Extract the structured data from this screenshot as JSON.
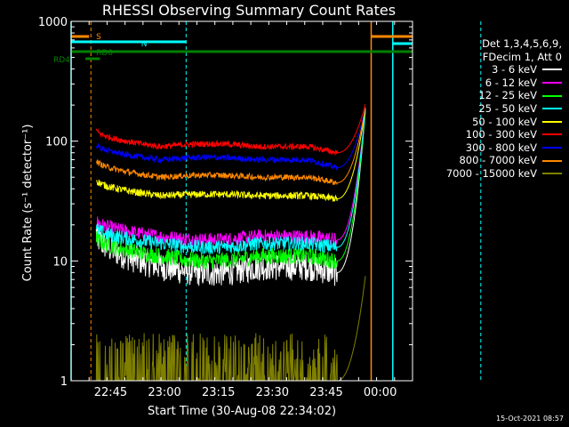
{
  "title": "RHESSI Observing Summary Count Rates",
  "stamp": "15-Oct-2021 08:57",
  "colors": {
    "background": "#000000",
    "axes": "#ffffff",
    "attenuator_state": "#ff8800",
    "night_marker": "#00ffff",
    "saa_marker": "#008000"
  },
  "chart_data": {
    "type": "line",
    "title": "RHESSI Observing Summary Count Rates",
    "xlabel": "Start Time (30-Aug-08 22:34:02)",
    "ylabel": "Count Rate (s⁻¹ detector⁻¹)",
    "yscale": "log",
    "ylim": [
      1,
      1000
    ],
    "xlim": [
      "22:34",
      "00:09"
    ],
    "x_ticks": [
      "22:45",
      "23:00",
      "23:15",
      "23:30",
      "23:45",
      "00:00"
    ],
    "y_ticks": [
      "1",
      "10",
      "100",
      "1000"
    ],
    "legend": {
      "header": [
        "Det 1,3,4,5,6,9,",
        "FDecim 1, Att 0"
      ],
      "placement": "right"
    },
    "series": [
      {
        "name": "3 - 6 keV",
        "color": "#ffffff",
        "start": 17,
        "mid": 9,
        "late": 8,
        "pre_flare": 8,
        "peak": 200,
        "noise": 0.12
      },
      {
        "name": "6 - 12 keV",
        "color": "#ff00ff",
        "start": 22,
        "mid": 16,
        "late": 15,
        "pre_flare": 15,
        "peak": 200,
        "noise": 0.06
      },
      {
        "name": "12 - 25 keV",
        "color": "#00ff00",
        "start": 16,
        "mid": 11,
        "late": 10,
        "pre_flare": 10,
        "peak": 200,
        "noise": 0.07
      },
      {
        "name": "25 - 50 keV",
        "color": "#00ffff",
        "start": 19,
        "mid": 14,
        "late": 13,
        "pre_flare": 13,
        "peak": 200,
        "noise": 0.06
      },
      {
        "name": "50 - 100 keV",
        "color": "#ffff00",
        "start": 48,
        "mid": 35,
        "late": 36,
        "pre_flare": 33,
        "peak": 200,
        "noise": 0.03
      },
      {
        "name": "100 - 300 keV",
        "color": "#ff0000",
        "start": 125,
        "mid": 90,
        "late": 95,
        "pre_flare": 80,
        "peak": 210,
        "noise": 0.025
      },
      {
        "name": "300 - 800 keV",
        "color": "#0000ff",
        "start": 95,
        "mid": 70,
        "late": 73,
        "pre_flare": 60,
        "peak": 200,
        "noise": 0.025
      },
      {
        "name": "800 - 7000 keV",
        "color": "#ff8800",
        "start": 70,
        "mid": 50,
        "late": 52,
        "pre_flare": 45,
        "peak": 200,
        "noise": 0.025
      },
      {
        "name": "7000 - 15000 keV",
        "color": "#808000",
        "start": 3,
        "mid": 1,
        "late": 1,
        "pre_flare": 1,
        "peak": 8,
        "noise": 0.4
      }
    ],
    "annotations": [
      {
        "label": "S",
        "color": "#ff8800"
      },
      {
        "label": "N",
        "color": "#00ffff"
      },
      {
        "label": "RD0",
        "color": "#008000"
      },
      {
        "label": "RD4",
        "color": "#008000"
      }
    ]
  }
}
